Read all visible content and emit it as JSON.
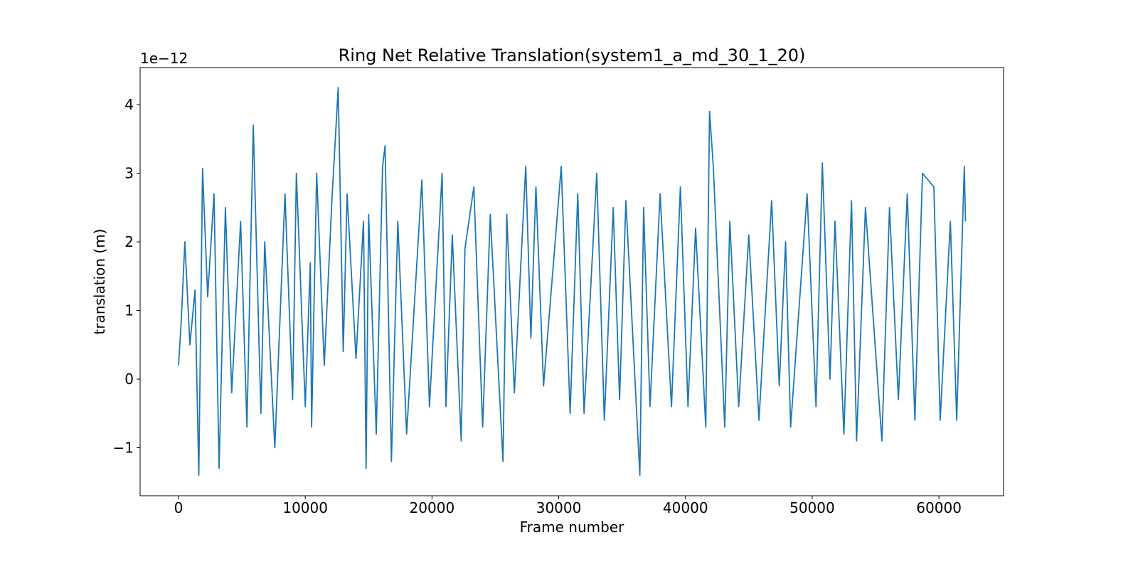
{
  "chart_data": {
    "type": "line",
    "title": "Ring Net Relative Translation(system1_a_md_30_1_20)",
    "x_label": "Frame number",
    "y_label": "translation (m)",
    "y_offset_label": "1e−12",
    "xlim": [
      -3030,
      65100
    ],
    "ylim": [
      -1.7,
      4.54
    ],
    "xticks": [
      0,
      10000,
      20000,
      30000,
      40000,
      50000,
      60000
    ],
    "yticks": [
      {
        "value": -1,
        "label": "−1"
      },
      0,
      1,
      2,
      3,
      4
    ],
    "grid": false,
    "series": [
      {
        "name": "translation",
        "color": "#1f77b4",
        "x": [
          0,
          200,
          500,
          900,
          1300,
          1600,
          1900,
          2300,
          2800,
          3200,
          3700,
          4200,
          4900,
          5400,
          5900,
          6500,
          6800,
          7600,
          8400,
          9000,
          9300,
          10000,
          10400,
          10500,
          10900,
          11500,
          12100,
          12600,
          13000,
          13300,
          14000,
          14600,
          14800,
          15000,
          15600,
          16100,
          16300,
          16800,
          17300,
          18000,
          19200,
          19800,
          20800,
          21100,
          21600,
          22300,
          22600,
          23300,
          24000,
          24600,
          25600,
          25900,
          26500,
          27400,
          27800,
          28200,
          28800,
          30200,
          30900,
          31500,
          32000,
          33000,
          33600,
          34300,
          34800,
          35300,
          36400,
          36700,
          37200,
          38000,
          38900,
          39600,
          40200,
          40800,
          41600,
          41900,
          42200,
          43100,
          43500,
          44200,
          45000,
          45800,
          46800,
          47400,
          47900,
          48300,
          49600,
          50300,
          50800,
          51400,
          51800,
          52500,
          53100,
          53500,
          54200,
          55500,
          56100,
          56800,
          57500,
          58100,
          58700,
          59600,
          60100,
          60900,
          61400,
          62000,
          62100
        ],
        "values": [
          0.2,
          0.8,
          2.0,
          0.5,
          1.3,
          -1.4,
          3.07,
          1.2,
          2.7,
          -1.3,
          2.5,
          -0.2,
          2.3,
          -0.7,
          3.7,
          -0.5,
          2.0,
          -1.0,
          2.7,
          -0.3,
          3.0,
          -0.4,
          1.7,
          -0.7,
          3.0,
          0.2,
          2.6,
          4.25,
          0.4,
          2.7,
          0.3,
          2.3,
          -1.3,
          2.4,
          -0.8,
          3.1,
          3.4,
          -1.2,
          2.3,
          -0.8,
          2.9,
          -0.4,
          3.0,
          -0.4,
          2.1,
          -0.9,
          1.9,
          2.8,
          -0.7,
          2.4,
          -1.2,
          2.4,
          -0.2,
          3.1,
          0.6,
          2.8,
          -0.1,
          3.1,
          -0.5,
          2.7,
          -0.5,
          3.0,
          -0.6,
          2.5,
          -0.3,
          2.6,
          -1.4,
          2.5,
          -0.4,
          2.7,
          -0.4,
          2.8,
          -0.4,
          2.2,
          -0.7,
          3.9,
          3.1,
          -0.7,
          2.3,
          -0.4,
          2.1,
          -0.6,
          2.6,
          -0.1,
          2.0,
          -0.7,
          2.7,
          -0.4,
          3.15,
          0.0,
          2.3,
          -0.8,
          2.6,
          -0.9,
          2.5,
          -0.9,
          2.5,
          -0.3,
          2.7,
          -0.6,
          3.0,
          2.8,
          -0.6,
          2.3,
          -0.6,
          3.1,
          2.3
        ]
      }
    ]
  }
}
